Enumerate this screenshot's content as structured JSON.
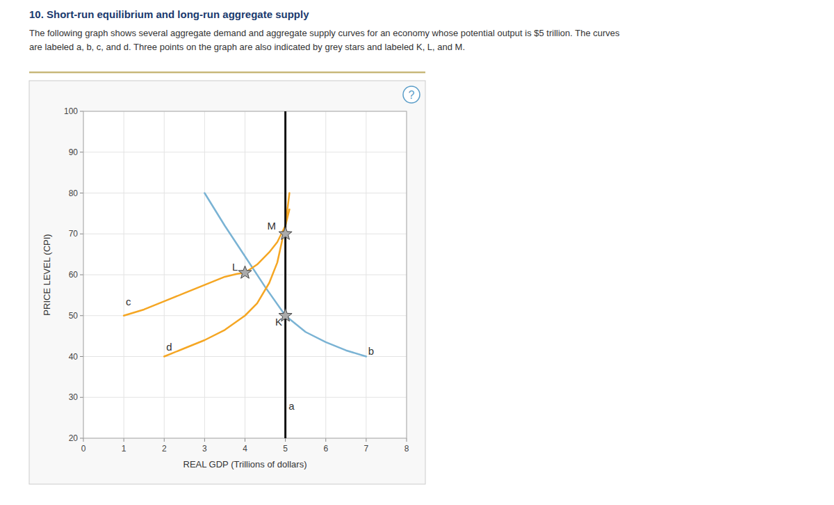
{
  "chart_data": {
    "type": "line",
    "title": "10. Short-run equilibrium and long-run aggregate supply",
    "subtitle": [
      "The following graph shows several aggregate demand and aggregate supply curves for an economy whose potential output is $5 trillion. The curves",
      "are labeled a, b, c, and d. Three points on the graph are also indicated by grey stars and labeled K, L, and M."
    ],
    "x_label": "REAL GDP (Trillions of dollars)",
    "y_label": "PRICE LEVEL (CPI)",
    "xlim": [
      0,
      8
    ],
    "ylim": [
      20,
      100
    ],
    "xticks": [
      0,
      1,
      2,
      3,
      4,
      5,
      6,
      7,
      8
    ],
    "yticks": [
      20,
      30,
      40,
      50,
      60,
      70,
      80,
      90,
      100
    ],
    "grid": true,
    "series": [
      {
        "type": "line",
        "color": "#7ab3d4",
        "x": [
          3.0,
          3.5,
          4.0,
          4.5,
          5.0,
          5.5,
          6.0,
          6.5,
          7.0
        ],
        "values": [
          80.0,
          72.0,
          64.5,
          57.0,
          50.0,
          46.0,
          43.5,
          41.5,
          40.0
        ]
      },
      {
        "type": "line",
        "color": "#f5a623",
        "x": [
          1.0,
          1.5,
          2.0,
          2.5,
          3.0,
          3.5,
          3.8,
          4.0,
          4.3,
          4.6,
          4.8,
          5.0,
          5.1
        ],
        "values": [
          50.0,
          51.5,
          53.5,
          55.5,
          57.5,
          59.5,
          60.2,
          60.5,
          62.5,
          65.5,
          68.0,
          72.0,
          76.0
        ]
      },
      {
        "type": "line",
        "color": "#f5a623",
        "x": [
          2.0,
          2.5,
          3.0,
          3.5,
          4.0,
          4.3,
          4.6,
          4.8,
          5.0,
          5.1
        ],
        "values": [
          40.0,
          42.0,
          44.0,
          46.5,
          50.0,
          53.0,
          58.0,
          63.0,
          72.0,
          80.0
        ]
      },
      {
        "type": "vline",
        "color": "#111111",
        "x": 5
      },
      {
        "type": "scatter",
        "color": "#aaaaaa",
        "marker": "star",
        "x": [
          5.0,
          4.0,
          5.0
        ],
        "values": [
          50.0,
          60.5,
          70.0
        ]
      }
    ],
    "annotations": [
      {
        "text": "b",
        "x": 7.05,
        "y": 40.5
      },
      {
        "text": "c",
        "x": 1.05,
        "y": 52.5
      },
      {
        "text": "d",
        "x": 2.05,
        "y": 41.5
      },
      {
        "text": "a",
        "x": 5.08,
        "y": 27
      },
      {
        "text": "K",
        "x": 4.75,
        "y": 47.5
      },
      {
        "text": "L",
        "x": 3.68,
        "y": 61.0
      },
      {
        "text": "M",
        "x": 4.55,
        "y": 71.0
      },
      {
        "text": "?"
      }
    ]
  }
}
